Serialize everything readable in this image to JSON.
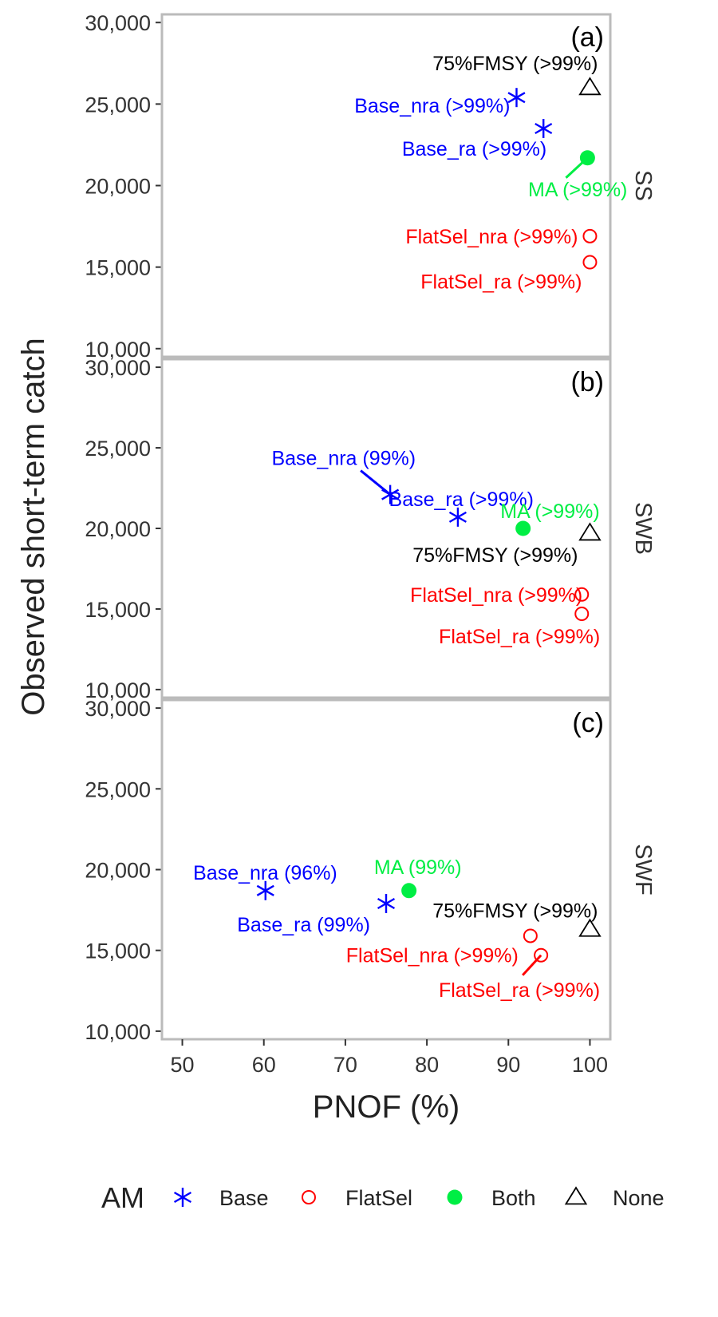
{
  "chart_data": {
    "type": "scatter",
    "xlabel": "PNOF (%)",
    "ylabel": "Observed short-term catch",
    "xlim": [
      47.5,
      102.5
    ],
    "ylim": [
      9500,
      30500
    ],
    "x_ticks": [
      "50",
      "60",
      "70",
      "80",
      "90",
      "100"
    ],
    "y_ticks": [
      "10,000",
      "15,000",
      "20,000",
      "25,000",
      "30,000"
    ],
    "colors": {
      "Base": "#0000ff",
      "FlatSel": "#ff0000",
      "Both": "#00ee44",
      "None": "#000000"
    },
    "panels": [
      {
        "tag": "(a)",
        "strip": "SS",
        "points": [
          {
            "label": "75%FMSY (>99%)",
            "am": "None",
            "x": 100,
            "y": 26000
          },
          {
            "label": "Base_nra (>99%)",
            "am": "Base",
            "x": 91,
            "y": 25400
          },
          {
            "label": "Base_ra (>99%)",
            "am": "Base",
            "x": 94.3,
            "y": 23500
          },
          {
            "label": "MA (>99%)",
            "am": "Both",
            "x": 99.7,
            "y": 21700
          },
          {
            "label": "FlatSel_nra (>99%)",
            "am": "FlatSel",
            "x": 100,
            "y": 16900
          },
          {
            "label": "FlatSel_ra (>99%)",
            "am": "FlatSel",
            "x": 100,
            "y": 15300
          }
        ]
      },
      {
        "tag": "(b)",
        "strip": "SWB",
        "points": [
          {
            "label": "Base_nra (99%)",
            "am": "Base",
            "x": 75.5,
            "y": 22100
          },
          {
            "label": "Base_ra (>99%)",
            "am": "Base",
            "x": 83.8,
            "y": 20700
          },
          {
            "label": "MA (>99%)",
            "am": "Both",
            "x": 91.8,
            "y": 20000
          },
          {
            "label": "75%FMSY (>99%)",
            "am": "None",
            "x": 100,
            "y": 19700
          },
          {
            "label": "FlatSel_nra (>99%)",
            "am": "FlatSel",
            "x": 99,
            "y": 15900
          },
          {
            "label": "FlatSel_ra (>99%)",
            "am": "FlatSel",
            "x": 99,
            "y": 14700
          }
        ]
      },
      {
        "tag": "(c)",
        "strip": "SWF",
        "points": [
          {
            "label": "Base_nra (96%)",
            "am": "Base",
            "x": 60.2,
            "y": 18700
          },
          {
            "label": "Base_ra (99%)",
            "am": "Base",
            "x": 75,
            "y": 17900
          },
          {
            "label": "MA (99%)",
            "am": "Both",
            "x": 77.8,
            "y": 18700
          },
          {
            "label": "75%FMSY (>99%)",
            "am": "None",
            "x": 100,
            "y": 16300
          },
          {
            "label": "FlatSel_nra (>99%)",
            "am": "FlatSel",
            "x": 92.7,
            "y": 15900
          },
          {
            "label": "FlatSel_ra (>99%)",
            "am": "FlatSel",
            "x": 94,
            "y": 14700
          }
        ]
      }
    ],
    "legend": {
      "title": "AM",
      "position": "bottom",
      "items": [
        {
          "name": "Base",
          "shape": "asterisk"
        },
        {
          "name": "FlatSel",
          "shape": "open-circle"
        },
        {
          "name": "Both",
          "shape": "filled-circle"
        },
        {
          "name": "None",
          "shape": "open-triangle"
        }
      ]
    }
  }
}
